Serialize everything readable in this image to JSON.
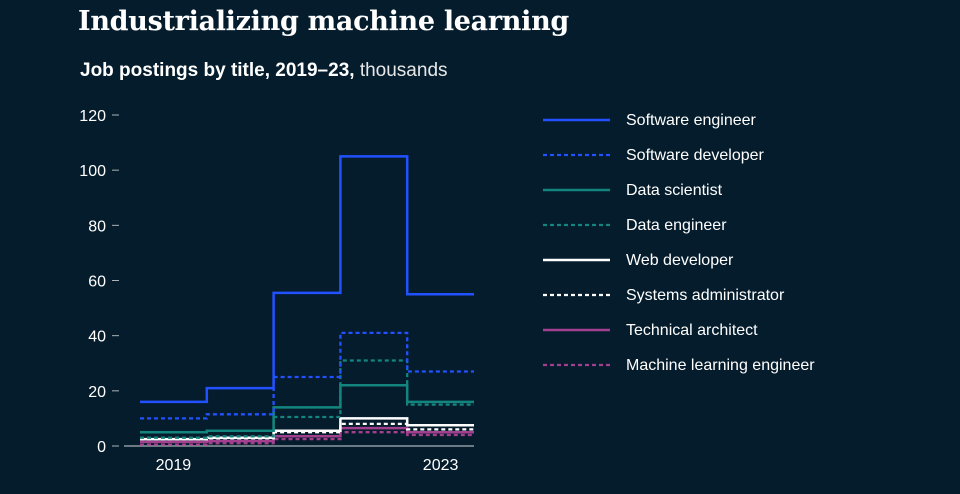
{
  "header": {
    "title": "Industrializing machine learning",
    "subtitle_bold": "Job postings by title, 2019–23,",
    "subtitle_unit": "thousands"
  },
  "chart_data": {
    "type": "line",
    "step": true,
    "x": [
      2019,
      2020,
      2021,
      2022,
      2023
    ],
    "x_tick_labels": [
      "2019",
      "2023"
    ],
    "ylim": [
      0,
      120
    ],
    "y_ticks": [
      0,
      20,
      40,
      60,
      80,
      100,
      120
    ],
    "xlabel": "",
    "ylabel": "",
    "grid": false,
    "legend_position": "right",
    "series": [
      {
        "name": "Software engineer",
        "values": [
          16,
          21,
          55.5,
          105,
          55
        ],
        "color": "#2251FF",
        "dash": "solid"
      },
      {
        "name": "Software developer",
        "values": [
          10,
          11.5,
          25,
          41,
          27
        ],
        "color": "#2251FF",
        "dash": "dotted"
      },
      {
        "name": "Data scientist",
        "values": [
          5,
          5.5,
          14,
          22,
          16
        ],
        "color": "#14857E",
        "dash": "solid"
      },
      {
        "name": "Data engineer",
        "values": [
          3,
          3.5,
          10.5,
          31,
          15
        ],
        "color": "#14857E",
        "dash": "dotted"
      },
      {
        "name": "Web developer",
        "values": [
          2.5,
          3,
          5.5,
          10,
          7.5
        ],
        "color": "#FFFFFF",
        "dash": "solid"
      },
      {
        "name": "Systems administrator",
        "values": [
          2.5,
          2.8,
          5,
          8,
          6
        ],
        "color": "#FFFFFF",
        "dash": "dotted"
      },
      {
        "name": "Technical architect",
        "values": [
          1.5,
          1.8,
          3.5,
          6.5,
          5
        ],
        "color": "#A23F8E",
        "dash": "solid"
      },
      {
        "name": "Machine learning engineer",
        "values": [
          0.5,
          1,
          2.5,
          5,
          4
        ],
        "color": "#A23F8E",
        "dash": "dotted"
      }
    ]
  },
  "colors": {
    "background": "#051C2C",
    "axis": "#A8B3BA"
  }
}
